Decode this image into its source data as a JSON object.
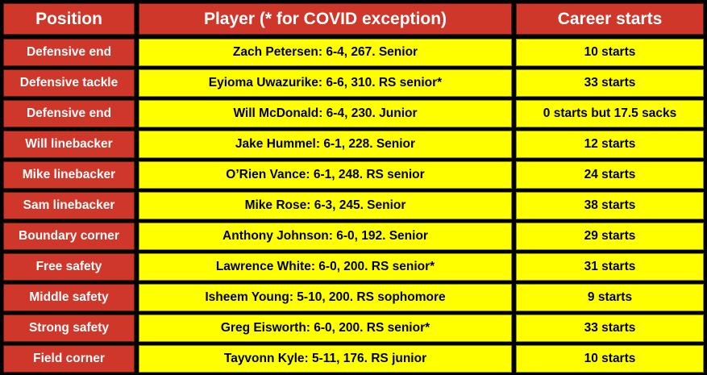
{
  "table": {
    "header": [
      "Position",
      "Player (* for COVID exception)",
      "Career starts"
    ],
    "rows": [
      [
        "Defensive end",
        "Zach Petersen: 6-4, 267. Senior",
        "10 starts"
      ],
      [
        "Defensive tackle",
        "Eyioma Uwazurike: 6-6, 310. RS senior*",
        "33 starts"
      ],
      [
        "Defensive end",
        "Will McDonald: 6-4, 230. Junior",
        "0 starts but 17.5 sacks"
      ],
      [
        "Will linebacker",
        "Jake Hummel: 6-1, 228. Senior",
        "12 starts"
      ],
      [
        "Mike linebacker",
        "O’Rien Vance: 6-1, 248. RS senior",
        "24 starts"
      ],
      [
        "Sam linebacker",
        "Mike Rose: 6-3, 245. Senior",
        "38 starts"
      ],
      [
        "Boundary corner",
        "Anthony Johnson: 6-0, 192. Senior",
        "29 starts"
      ],
      [
        "Free safety",
        "Lawrence White: 6-0, 200. RS senior*",
        "31 starts"
      ],
      [
        "Middle safety",
        "Isheem Young: 5-10, 200. RS sophomore",
        "9 starts"
      ],
      [
        "Strong safety",
        "Greg Eisworth: 6-0, 200. RS senior*",
        "33 starts"
      ],
      [
        "Field corner",
        "Tayvonn Kyle: 5-11, 176. RS junior",
        "10 starts"
      ]
    ]
  }
}
